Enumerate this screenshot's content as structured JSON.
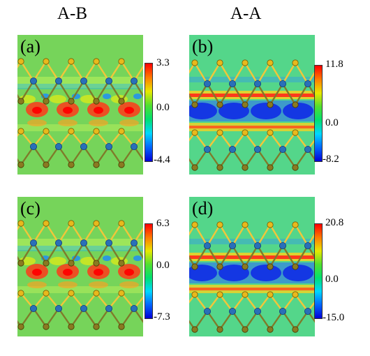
{
  "columns": [
    "A-B",
    "A-A"
  ],
  "panels": [
    {
      "id": "a",
      "label": "(a)",
      "cbar_max": "3.3",
      "cbar_mid": "0.0",
      "cbar_min": "-4.4",
      "type": "AB"
    },
    {
      "id": "b",
      "label": "(b)",
      "cbar_max": "11.8",
      "cbar_mid": "0.0",
      "cbar_min": "-8.2",
      "type": "AA"
    },
    {
      "id": "c",
      "label": "(c)",
      "cbar_max": "6.3",
      "cbar_mid": "0.0",
      "cbar_min": "-7.3",
      "type": "AB"
    },
    {
      "id": "d",
      "label": "(d)",
      "cbar_max": "20.8",
      "cbar_mid": "0.0",
      "cbar_min": "-15.0",
      "type": "AA"
    }
  ],
  "colors": {
    "background_field": "#76d45a",
    "aa_background": "#54d68a",
    "metal_atom": "#2a6fb8",
    "chalcogen_top": "#e8b91c",
    "chalcogen_bottom": "#8a7a22",
    "bond_light": "#f2c63a",
    "bond_dark": "#7f7a2a",
    "colormap": [
      "#0000d8",
      "#0066ff",
      "#00d8ff",
      "#00e070",
      "#50e030",
      "#e8e800",
      "#ff7a00",
      "#ff0000"
    ]
  }
}
